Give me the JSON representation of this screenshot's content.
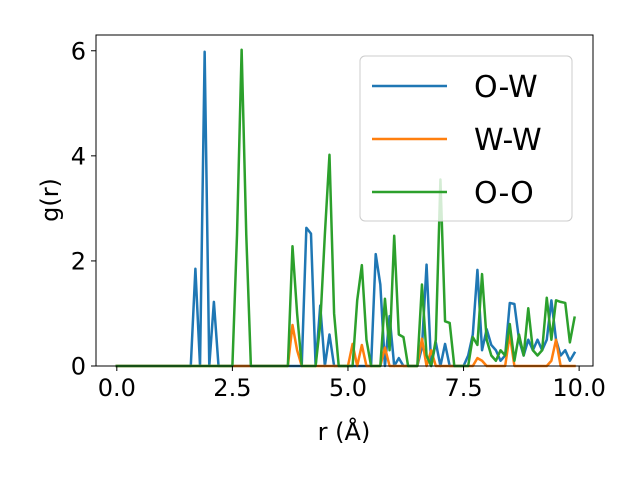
{
  "chart_data": {
    "type": "line",
    "xlabel": "r (Å)",
    "ylabel": "g(r)",
    "xlim": [
      -0.45,
      10.3
    ],
    "ylim": [
      0,
      6.3
    ],
    "xticks": [
      0.0,
      2.5,
      5.0,
      7.5,
      10.0
    ],
    "xtick_labels": [
      "0.0",
      "2.5",
      "5.0",
      "7.5",
      "10.0"
    ],
    "yticks": [
      0,
      2,
      4,
      6
    ],
    "ytick_labels": [
      "0",
      "2",
      "4",
      "6"
    ],
    "grid": false,
    "legend_position": "top-right",
    "series": [
      {
        "name": "O-W",
        "color": "#1f77b4",
        "x": [
          0.0,
          1.6,
          1.7,
          1.8,
          1.9,
          2.0,
          2.1,
          2.2,
          2.3,
          3.8,
          3.9,
          4.0,
          4.1,
          4.2,
          4.3,
          4.4,
          4.5,
          4.6,
          4.7,
          4.8,
          4.9,
          5.5,
          5.6,
          5.7,
          5.8,
          5.9,
          6.0,
          6.1,
          6.2,
          6.5,
          6.6,
          6.7,
          6.8,
          6.9,
          7.0,
          7.1,
          7.2,
          7.5,
          7.6,
          7.7,
          7.8,
          7.9,
          8.0,
          8.1,
          8.2,
          8.3,
          8.4,
          8.5,
          8.6,
          8.7,
          8.8,
          8.9,
          9.0,
          9.1,
          9.2,
          9.3,
          9.4,
          9.5,
          9.6,
          9.7,
          9.8,
          9.9
        ],
        "values": [
          0,
          0,
          1.85,
          0,
          5.98,
          0,
          1.22,
          0,
          0,
          0,
          0,
          0,
          2.63,
          2.52,
          0,
          1.15,
          0,
          0.6,
          0,
          0,
          0,
          0,
          2.13,
          1.55,
          0,
          0.95,
          0,
          0.15,
          0,
          0,
          0.35,
          1.93,
          0,
          0.45,
          0,
          0.42,
          0,
          0,
          0.2,
          0.6,
          1.83,
          0.3,
          0.7,
          0.4,
          0.3,
          0.1,
          0.2,
          1.2,
          1.18,
          0.5,
          0.2,
          0.5,
          0.3,
          0.5,
          0.3,
          0.5,
          1.25,
          0.5,
          0.2,
          0.3,
          0.1,
          0.25
        ]
      },
      {
        "name": "W-W",
        "color": "#ff7f0e",
        "x": [
          0.0,
          3.7,
          3.8,
          3.9,
          4.0,
          5.0,
          5.1,
          5.2,
          5.3,
          5.4,
          5.5,
          5.6,
          5.7,
          5.8,
          5.9,
          6.5,
          6.6,
          6.7,
          6.8,
          6.9,
          7.0,
          7.7,
          7.8,
          7.9,
          8.0,
          8.4,
          8.5,
          8.6,
          8.7,
          9.3,
          9.4,
          9.5,
          9.6,
          9.9
        ],
        "values": [
          0,
          0,
          0.78,
          0.3,
          0,
          0,
          0.42,
          0,
          0.4,
          0,
          0,
          0,
          0,
          0.35,
          0,
          0,
          0.52,
          0,
          0.3,
          0,
          0,
          0,
          0.15,
          0.1,
          0,
          0,
          0.6,
          0,
          0,
          0,
          0.1,
          0.5,
          0,
          0
        ]
      },
      {
        "name": "O-O",
        "color": "#2ca02c",
        "x": [
          0.0,
          2.5,
          2.6,
          2.7,
          2.8,
          2.9,
          3.7,
          3.8,
          3.9,
          4.0,
          4.3,
          4.4,
          4.5,
          4.6,
          4.7,
          4.8,
          4.9,
          5.0,
          5.1,
          5.2,
          5.3,
          5.4,
          5.5,
          5.6,
          5.7,
          5.8,
          5.9,
          6.0,
          6.1,
          6.2,
          6.3,
          6.4,
          6.5,
          6.6,
          6.7,
          6.8,
          6.9,
          7.0,
          7.1,
          7.2,
          7.3,
          7.4,
          7.5,
          7.6,
          7.7,
          7.8,
          7.9,
          8.0,
          8.1,
          8.2,
          8.3,
          8.4,
          8.5,
          8.6,
          8.7,
          8.8,
          8.9,
          9.0,
          9.1,
          9.2,
          9.3,
          9.4,
          9.5,
          9.6,
          9.7,
          9.8,
          9.9
        ],
        "values": [
          0,
          0,
          2.5,
          6.02,
          2.5,
          0,
          0,
          2.28,
          1.0,
          0,
          0,
          0.8,
          2.5,
          4.02,
          1.0,
          0,
          0,
          0,
          0,
          1.25,
          1.92,
          0.5,
          0,
          0,
          0,
          1.28,
          0.3,
          2.48,
          0.6,
          0.55,
          0,
          0,
          0,
          1.55,
          0.2,
          0,
          0.5,
          3.55,
          0.85,
          0.82,
          0,
          0,
          0,
          0,
          0.55,
          0.4,
          1.75,
          0.5,
          0.2,
          0.1,
          0.3,
          0.2,
          0.8,
          0.1,
          0.6,
          0.2,
          1.1,
          0.3,
          0.2,
          0.3,
          1.3,
          0.5,
          1.25,
          1.22,
          1.2,
          0.45,
          0.92
        ]
      }
    ]
  }
}
